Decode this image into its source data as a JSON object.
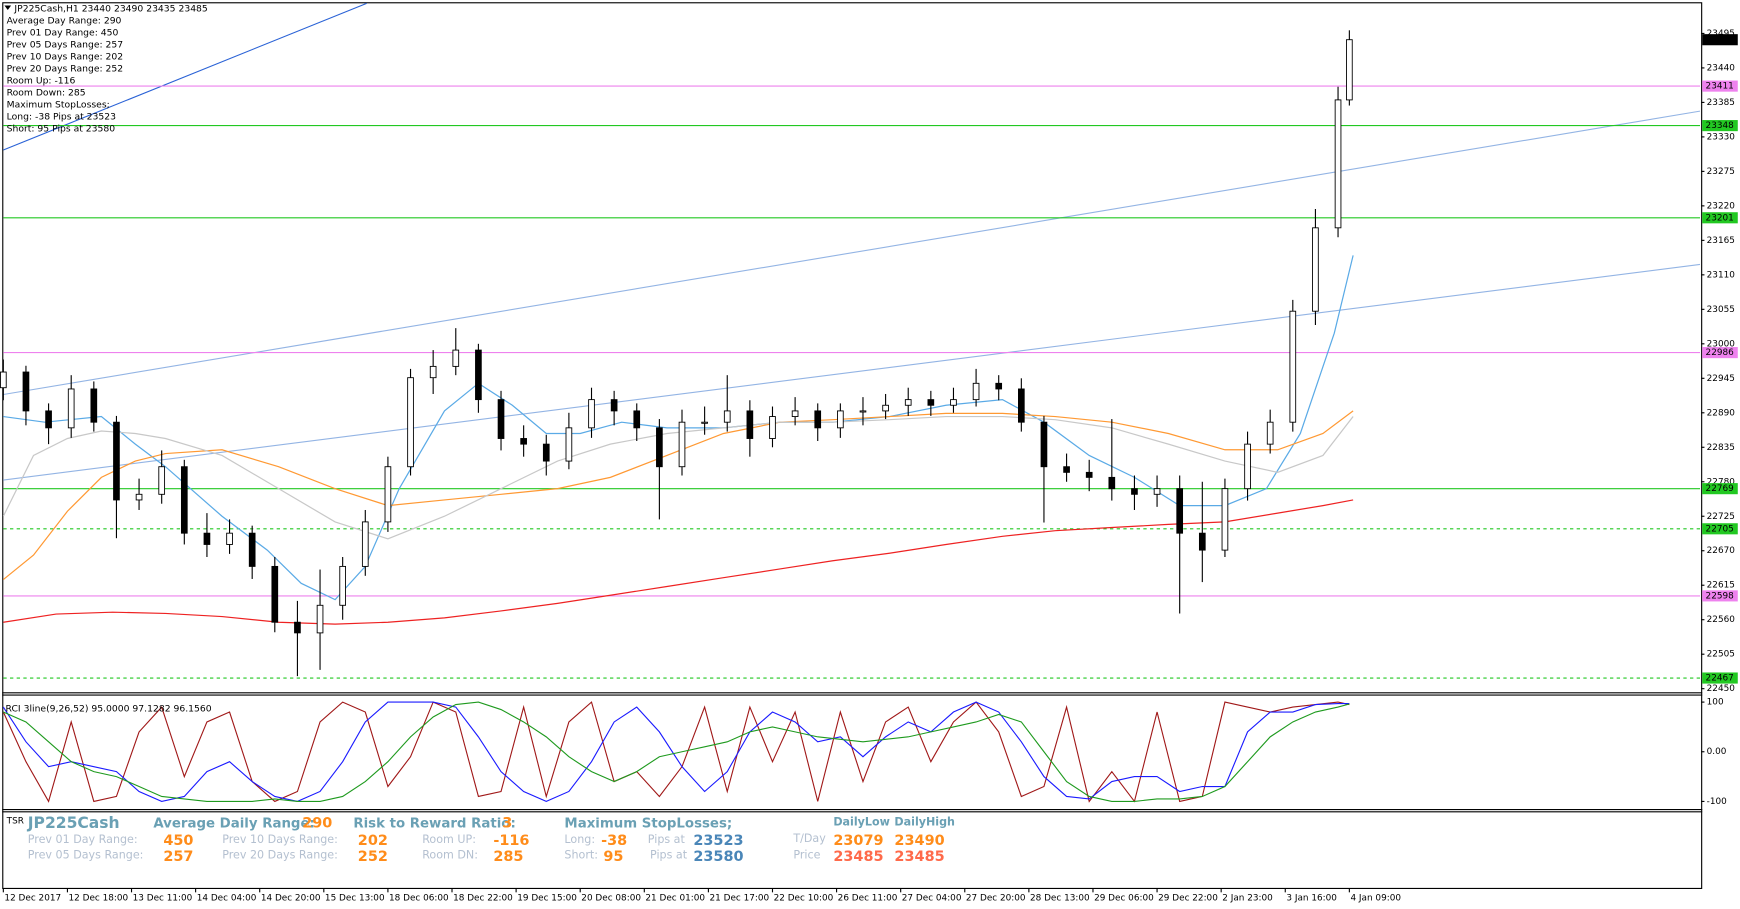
{
  "chart_data": [
    {
      "type": "candlestick",
      "title": "JP225Cash,H1  23440 23490 23435 23485",
      "annotations": [
        "Average Day  Range: 290",
        "Prev 01  Day  Range: 450",
        "Prev 05  Days Range: 257",
        "Prev 10  Days Range: 202",
        "Prev 20  Days Range: 252",
        "Room Up:     -116",
        "Room Down: 285",
        "Maximum StopLosses;",
        "Long:  -38 Pips at 23523",
        "Short: 95 Pips at 23580"
      ],
      "x": [
        0,
        6,
        12,
        18,
        24,
        30,
        36,
        42,
        48,
        54,
        60,
        66,
        72,
        78,
        84,
        90,
        96,
        102,
        108,
        114,
        120,
        126,
        132,
        138,
        144,
        150,
        156,
        162,
        168,
        174,
        180,
        186,
        192,
        198,
        204,
        210,
        216,
        222,
        228,
        234,
        240,
        246,
        252,
        258,
        264,
        270,
        276,
        282,
        288,
        294,
        300,
        306,
        312,
        318,
        324,
        330,
        336,
        342,
        348,
        354,
        357
      ],
      "open": [
        22930,
        22955,
        22893,
        22866,
        22928,
        22875,
        22751,
        22760,
        22804,
        22698,
        22680,
        22698,
        22645,
        22556,
        22539,
        22583,
        22645,
        22716,
        22804,
        22946,
        22964,
        22990,
        22911,
        22849,
        22840,
        22813,
        22866,
        22911,
        22893,
        22866,
        22804,
        22875,
        22875,
        22893,
        22849,
        22884,
        22893,
        22866,
        22893,
        22893,
        22902,
        22911,
        22902,
        22911,
        22937,
        22928,
        22875,
        22804,
        22795,
        22787,
        22769,
        22760,
        22769,
        22698,
        22671,
        22769,
        22840,
        22875,
        23052,
        23185,
        23389
      ],
      "high": [
        22975,
        22965,
        22905,
        22950,
        22940,
        22885,
        22785,
        22830,
        22815,
        22730,
        22720,
        22710,
        22660,
        22590,
        22640,
        22660,
        22735,
        22820,
        22960,
        22990,
        23025,
        23000,
        22925,
        22870,
        22855,
        22890,
        22930,
        22925,
        22905,
        22880,
        22895,
        22900,
        22950,
        22910,
        22900,
        22915,
        22905,
        22905,
        22915,
        22920,
        22930,
        22925,
        22930,
        22960,
        22950,
        22945,
        22885,
        22825,
        22815,
        22880,
        22790,
        22790,
        22790,
        22780,
        22785,
        22860,
        22895,
        23070,
        23215,
        23410,
        23500
      ],
      "low": [
        22910,
        22870,
        22840,
        22850,
        22860,
        22690,
        22735,
        22745,
        22680,
        22660,
        22665,
        22625,
        22540,
        22470,
        22480,
        22560,
        22630,
        22700,
        22790,
        22920,
        22950,
        22890,
        22830,
        22820,
        22790,
        22800,
        22850,
        22870,
        22845,
        22720,
        22790,
        22855,
        22860,
        22820,
        22835,
        22870,
        22845,
        22850,
        22870,
        22880,
        22885,
        22885,
        22890,
        22900,
        22910,
        22860,
        22715,
        22780,
        22765,
        22750,
        22735,
        22740,
        22570,
        22620,
        22660,
        22750,
        22825,
        22860,
        23030,
        23170,
        23380
      ],
      "close": [
        22955,
        22893,
        22866,
        22928,
        22875,
        22751,
        22760,
        22804,
        22698,
        22680,
        22698,
        22645,
        22556,
        22539,
        22583,
        22645,
        22716,
        22804,
        22946,
        22964,
        22990,
        22911,
        22849,
        22840,
        22813,
        22866,
        22911,
        22893,
        22866,
        22804,
        22875,
        22875,
        22893,
        22849,
        22884,
        22893,
        22866,
        22893,
        22893,
        22902,
        22911,
        22902,
        22911,
        22937,
        22928,
        22875,
        22804,
        22795,
        22787,
        22769,
        22760,
        22769,
        22698,
        22671,
        22769,
        22840,
        22875,
        23052,
        23185,
        23389,
        23485
      ],
      "up_color": "#ffffff",
      "down_color": "#000000",
      "moving_averages": [
        {
          "color": "#5aaae6",
          "x": [
            0,
            11,
            26,
            35,
            43,
            58,
            70,
            79,
            88,
            96,
            105,
            117,
            126,
            135,
            144,
            153,
            164,
            176,
            191,
            206,
            220,
            235,
            250,
            265,
            276,
            288,
            300,
            312,
            324,
            335,
            344,
            353,
            358
          ],
          "values": [
            22884,
            22875,
            22884,
            22840,
            22804,
            22725,
            22671,
            22618,
            22592,
            22645,
            22769,
            22893,
            22937,
            22902,
            22857,
            22857,
            22875,
            22866,
            22866,
            22875,
            22875,
            22884,
            22902,
            22911,
            22875,
            22822,
            22787,
            22742,
            22742,
            22769,
            22857,
            23017,
            23141
          ]
        },
        {
          "color": "#ff9933",
          "x": [
            0,
            8,
            17,
            26,
            35,
            43,
            58,
            73,
            88,
            102,
            117,
            132,
            147,
            161,
            176,
            191,
            206,
            220,
            235,
            250,
            265,
            279,
            294,
            309,
            324,
            338,
            350,
            358
          ],
          "values": [
            22624,
            22663,
            22733,
            22787,
            22813,
            22825,
            22831,
            22804,
            22769,
            22742,
            22751,
            22760,
            22769,
            22787,
            22822,
            22857,
            22875,
            22879,
            22884,
            22889,
            22889,
            22884,
            22875,
            22857,
            22831,
            22831,
            22857,
            22893
          ]
        },
        {
          "color": "#c8c8c8",
          "x": [
            0,
            8,
            17,
            26,
            35,
            43,
            58,
            73,
            88,
            102,
            117,
            132,
            147,
            161,
            176,
            191,
            206,
            220,
            235,
            250,
            265,
            279,
            294,
            309,
            324,
            338,
            350,
            358
          ],
          "values": [
            22725,
            22822,
            22849,
            22861,
            22857,
            22849,
            22822,
            22769,
            22716,
            22689,
            22725,
            22769,
            22813,
            22840,
            22857,
            22866,
            22875,
            22875,
            22879,
            22884,
            22884,
            22879,
            22866,
            22840,
            22813,
            22795,
            22822,
            22884
          ]
        },
        {
          "color": "#ee2222",
          "x": [
            0,
            14,
            29,
            43,
            58,
            73,
            88,
            102,
            117,
            132,
            147,
            161,
            176,
            191,
            206,
            220,
            235,
            250,
            265,
            279,
            294,
            309,
            324,
            338,
            350,
            358
          ],
          "values": [
            22556,
            22569,
            22572,
            22570,
            22565,
            22556,
            22553,
            22556,
            22563,
            22574,
            22586,
            22599,
            22613,
            22627,
            22641,
            22654,
            22666,
            22680,
            22693,
            22702,
            22707,
            22712,
            22716,
            22730,
            22742,
            22751
          ]
        }
      ],
      "levels": [
        {
          "value": 23411,
          "color": "#ee82ee",
          "dashed": false
        },
        {
          "value": 23348,
          "color": "#22c822",
          "dashed": false
        },
        {
          "value": 23201,
          "color": "#22c822",
          "dashed": false
        },
        {
          "value": 22986,
          "color": "#ee82ee",
          "dashed": false
        },
        {
          "value": 22769,
          "color": "#22c822",
          "dashed": false
        },
        {
          "value": 22705,
          "color": "#22c822",
          "dashed": true
        },
        {
          "value": 22598,
          "color": "#ee82ee",
          "dashed": false
        },
        {
          "value": 22467,
          "color": "#22c822",
          "dashed": true
        }
      ],
      "last_price": 23485,
      "xlim": [
        0,
        450
      ],
      "xticks": [
        {
          "value": 0,
          "label": "12 Dec 2017"
        },
        {
          "value": 17,
          "label": "12 Dec 18:00"
        },
        {
          "value": 34,
          "label": "13 Dec 11:00"
        },
        {
          "value": 51,
          "label": "14 Dec 04:00"
        },
        {
          "value": 68,
          "label": "14 Dec 20:00"
        },
        {
          "value": 85,
          "label": "15 Dec 13:00"
        },
        {
          "value": 102,
          "label": "18 Dec 06:00"
        },
        {
          "value": 119,
          "label": "18 Dec 22:00"
        },
        {
          "value": 136,
          "label": "19 Dec 15:00"
        },
        {
          "value": 153,
          "label": "20 Dec 08:00"
        },
        {
          "value": 170,
          "label": "21 Dec 01:00"
        },
        {
          "value": 187,
          "label": "21 Dec 17:00"
        },
        {
          "value": 204,
          "label": "22 Dec 10:00"
        },
        {
          "value": 221,
          "label": "26 Dec 11:00"
        },
        {
          "value": 238,
          "label": "27 Dec 04:00"
        },
        {
          "value": 255,
          "label": "27 Dec 20:00"
        },
        {
          "value": 272,
          "label": "28 Dec 13:00"
        },
        {
          "value": 289,
          "label": "29 Dec 06:00"
        },
        {
          "value": 306,
          "label": "29 Dec 22:00"
        },
        {
          "value": 323,
          "label": "2 Jan 23:00"
        },
        {
          "value": 340,
          "label": "3 Jan 16:00"
        },
        {
          "value": 357,
          "label": "4 Jan 09:00"
        }
      ],
      "ylim": [
        22446,
        23543
      ],
      "yticks": [
        22450,
        22505,
        22560,
        22615,
        22670,
        22725,
        22780,
        22835,
        22890,
        22945,
        23000,
        23055,
        23110,
        23165,
        23220,
        23275,
        23330,
        23385,
        23440,
        23495
      ]
    },
    {
      "type": "line",
      "title": "RCI 3line(9,26,52) 95.0000 97.1282 96.1560",
      "x": [
        0,
        6,
        12,
        18,
        24,
        30,
        36,
        42,
        48,
        54,
        60,
        66,
        72,
        78,
        84,
        90,
        96,
        102,
        108,
        114,
        120,
        126,
        132,
        138,
        144,
        150,
        156,
        162,
        168,
        174,
        180,
        186,
        192,
        198,
        204,
        210,
        216,
        222,
        228,
        234,
        240,
        246,
        252,
        258,
        264,
        270,
        276,
        282,
        288,
        294,
        300,
        306,
        312,
        318,
        324,
        330,
        336,
        342,
        348,
        354,
        357
      ],
      "series": [
        {
          "color": "#a01818",
          "values": [
            80,
            -20,
            -100,
            60,
            -100,
            -90,
            40,
            90,
            -50,
            60,
            80,
            -60,
            -100,
            -80,
            60,
            100,
            80,
            -70,
            -10,
            100,
            80,
            -90,
            -80,
            90,
            -90,
            60,
            100,
            -60,
            -40,
            -90,
            -30,
            90,
            -80,
            90,
            -20,
            80,
            -100,
            80,
            -60,
            60,
            90,
            -20,
            60,
            100,
            40,
            -90,
            -70,
            90,
            -100,
            -40,
            -100,
            80,
            -100,
            -90,
            100,
            90,
            80,
            90,
            95,
            100,
            95
          ]
        },
        {
          "color": "#1a1aff",
          "values": [
            90,
            20,
            -30,
            -20,
            -30,
            -40,
            -80,
            -100,
            -90,
            -40,
            -20,
            -60,
            -90,
            -100,
            -80,
            -20,
            60,
            100,
            100,
            100,
            90,
            30,
            -40,
            -80,
            -100,
            -80,
            -20,
            60,
            90,
            40,
            -30,
            -80,
            -40,
            40,
            80,
            60,
            20,
            30,
            -10,
            30,
            60,
            40,
            80,
            100,
            80,
            20,
            -50,
            -90,
            -95,
            -60,
            -50,
            -50,
            -80,
            -70,
            -70,
            40,
            80,
            80,
            95,
            97,
            97.1282
          ]
        },
        {
          "color": "#1e9a1e",
          "values": [
            80,
            60,
            20,
            -20,
            -40,
            -50,
            -70,
            -90,
            -95,
            -100,
            -100,
            -100,
            -95,
            -100,
            -100,
            -90,
            -60,
            -20,
            30,
            70,
            95,
            100,
            85,
            60,
            30,
            -10,
            -40,
            -60,
            -40,
            -10,
            0,
            10,
            20,
            40,
            50,
            40,
            30,
            25,
            20,
            25,
            30,
            40,
            50,
            60,
            75,
            60,
            0,
            -60,
            -90,
            -100,
            -100,
            -95,
            -95,
            -90,
            -70,
            -20,
            30,
            60,
            80,
            90,
            96.156
          ]
        }
      ],
      "xlim": [
        0,
        450
      ],
      "ylim": [
        -113,
        113
      ],
      "yticks": [
        100,
        {
          "value": 0,
          "label": "0.00"
        },
        -100
      ]
    }
  ],
  "tsr_panel": {
    "label": "TSR",
    "symbol": "JP225Cash",
    "adr_label": "Average Daily Range:",
    "adr": 290,
    "prev01_label": "Prev 01 Day Range:",
    "prev01": 450,
    "prev05_label": "Prev 05 Days Range:",
    "prev05": 257,
    "prev10_label": "Prev 10 Days Range:",
    "prev10": 202,
    "prev20_label": "Prev 20 Days Range:",
    "prev20": 252,
    "rr_label": "Risk to Reward Ratio:",
    "rr": 3,
    "room_up_label": "Room UP:",
    "room_up": -116,
    "room_dn_label": "Room DN:",
    "room_dn": 285,
    "sl_label": "Maximum StopLosses;",
    "long_label": "Long:",
    "long_pips": -38,
    "long_at_label": "Pips at",
    "long_price": 23523,
    "short_label": "Short:",
    "short_pips": 95,
    "short_at_label": "Pips at",
    "short_price": 23580,
    "daily_low_label": "DailyLow",
    "daily_high_label": "DailyHigh",
    "tday_label": "T/Day",
    "tday_low": 23079,
    "tday_high": 23490,
    "price_label": "Price",
    "price_low": 23485,
    "price_high": 23485
  }
}
